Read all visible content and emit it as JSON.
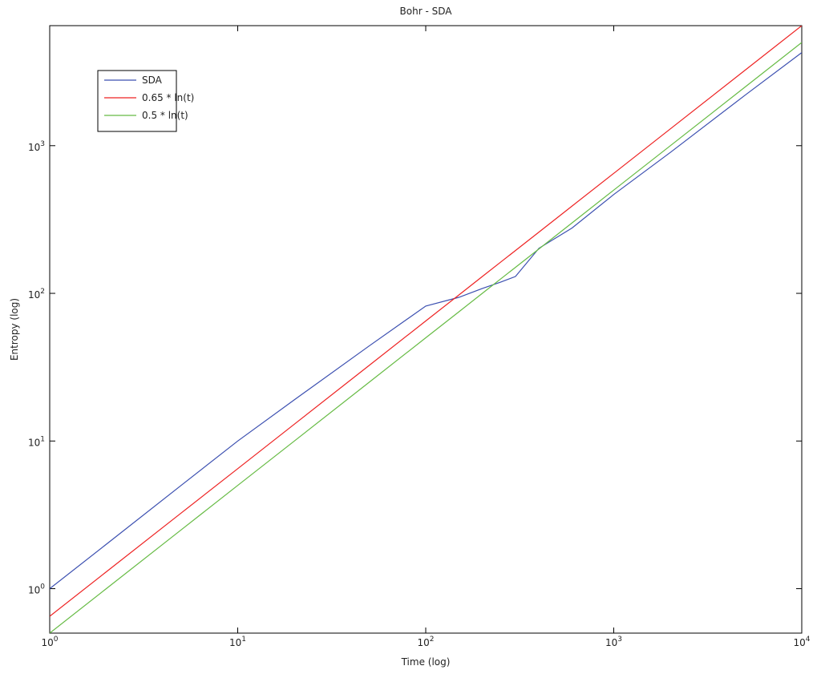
{
  "chart_data": {
    "type": "line",
    "title": "Bohr - SDA",
    "xlabel": "Time (log)",
    "ylabel": "Entropy (log)",
    "xscale": "log",
    "yscale": "log",
    "xlim": [
      1,
      10000
    ],
    "ylim": [
      0.5,
      6500
    ],
    "xticks": [
      {
        "value": 1,
        "label": "10",
        "exponent": "0"
      },
      {
        "value": 10,
        "label": "10",
        "exponent": "1"
      },
      {
        "value": 100,
        "label": "10",
        "exponent": "2"
      },
      {
        "value": 1000,
        "label": "10",
        "exponent": "3"
      },
      {
        "value": 10000,
        "label": "10",
        "exponent": "4"
      }
    ],
    "yticks": [
      {
        "value": 1,
        "label": "10",
        "exponent": "0"
      },
      {
        "value": 10,
        "label": "10",
        "exponent": "1"
      },
      {
        "value": 100,
        "label": "10",
        "exponent": "2"
      },
      {
        "value": 1000,
        "label": "10",
        "exponent": "3"
      }
    ],
    "grid": false,
    "legend": "upper left",
    "x": [
      1,
      2,
      5,
      10,
      20,
      50,
      100,
      150,
      200,
      250,
      300,
      400,
      600,
      1000,
      2000,
      5000,
      10000
    ],
    "series": [
      {
        "name": "SDA",
        "color": "#3b4fb0",
        "values": [
          1,
          2,
          5,
          10,
          19,
          44,
          82,
          94,
          108,
          119,
          130,
          202,
          277,
          467,
          900,
          2200,
          4270
        ]
      },
      {
        "name": "0.65 * ln(t)",
        "color": "#ee2222",
        "values": [
          0.65,
          1.3,
          3.25,
          6.5,
          13,
          32.5,
          65,
          97.5,
          130,
          162.5,
          195,
          260,
          390,
          650,
          1300,
          3250,
          6500
        ]
      },
      {
        "name": "0.5 * ln(t)",
        "color": "#66bb44",
        "values": [
          0.5,
          1,
          2.5,
          5,
          10,
          25,
          50,
          75,
          100,
          125,
          150,
          200,
          300,
          500,
          1000,
          2500,
          5000
        ]
      }
    ]
  }
}
